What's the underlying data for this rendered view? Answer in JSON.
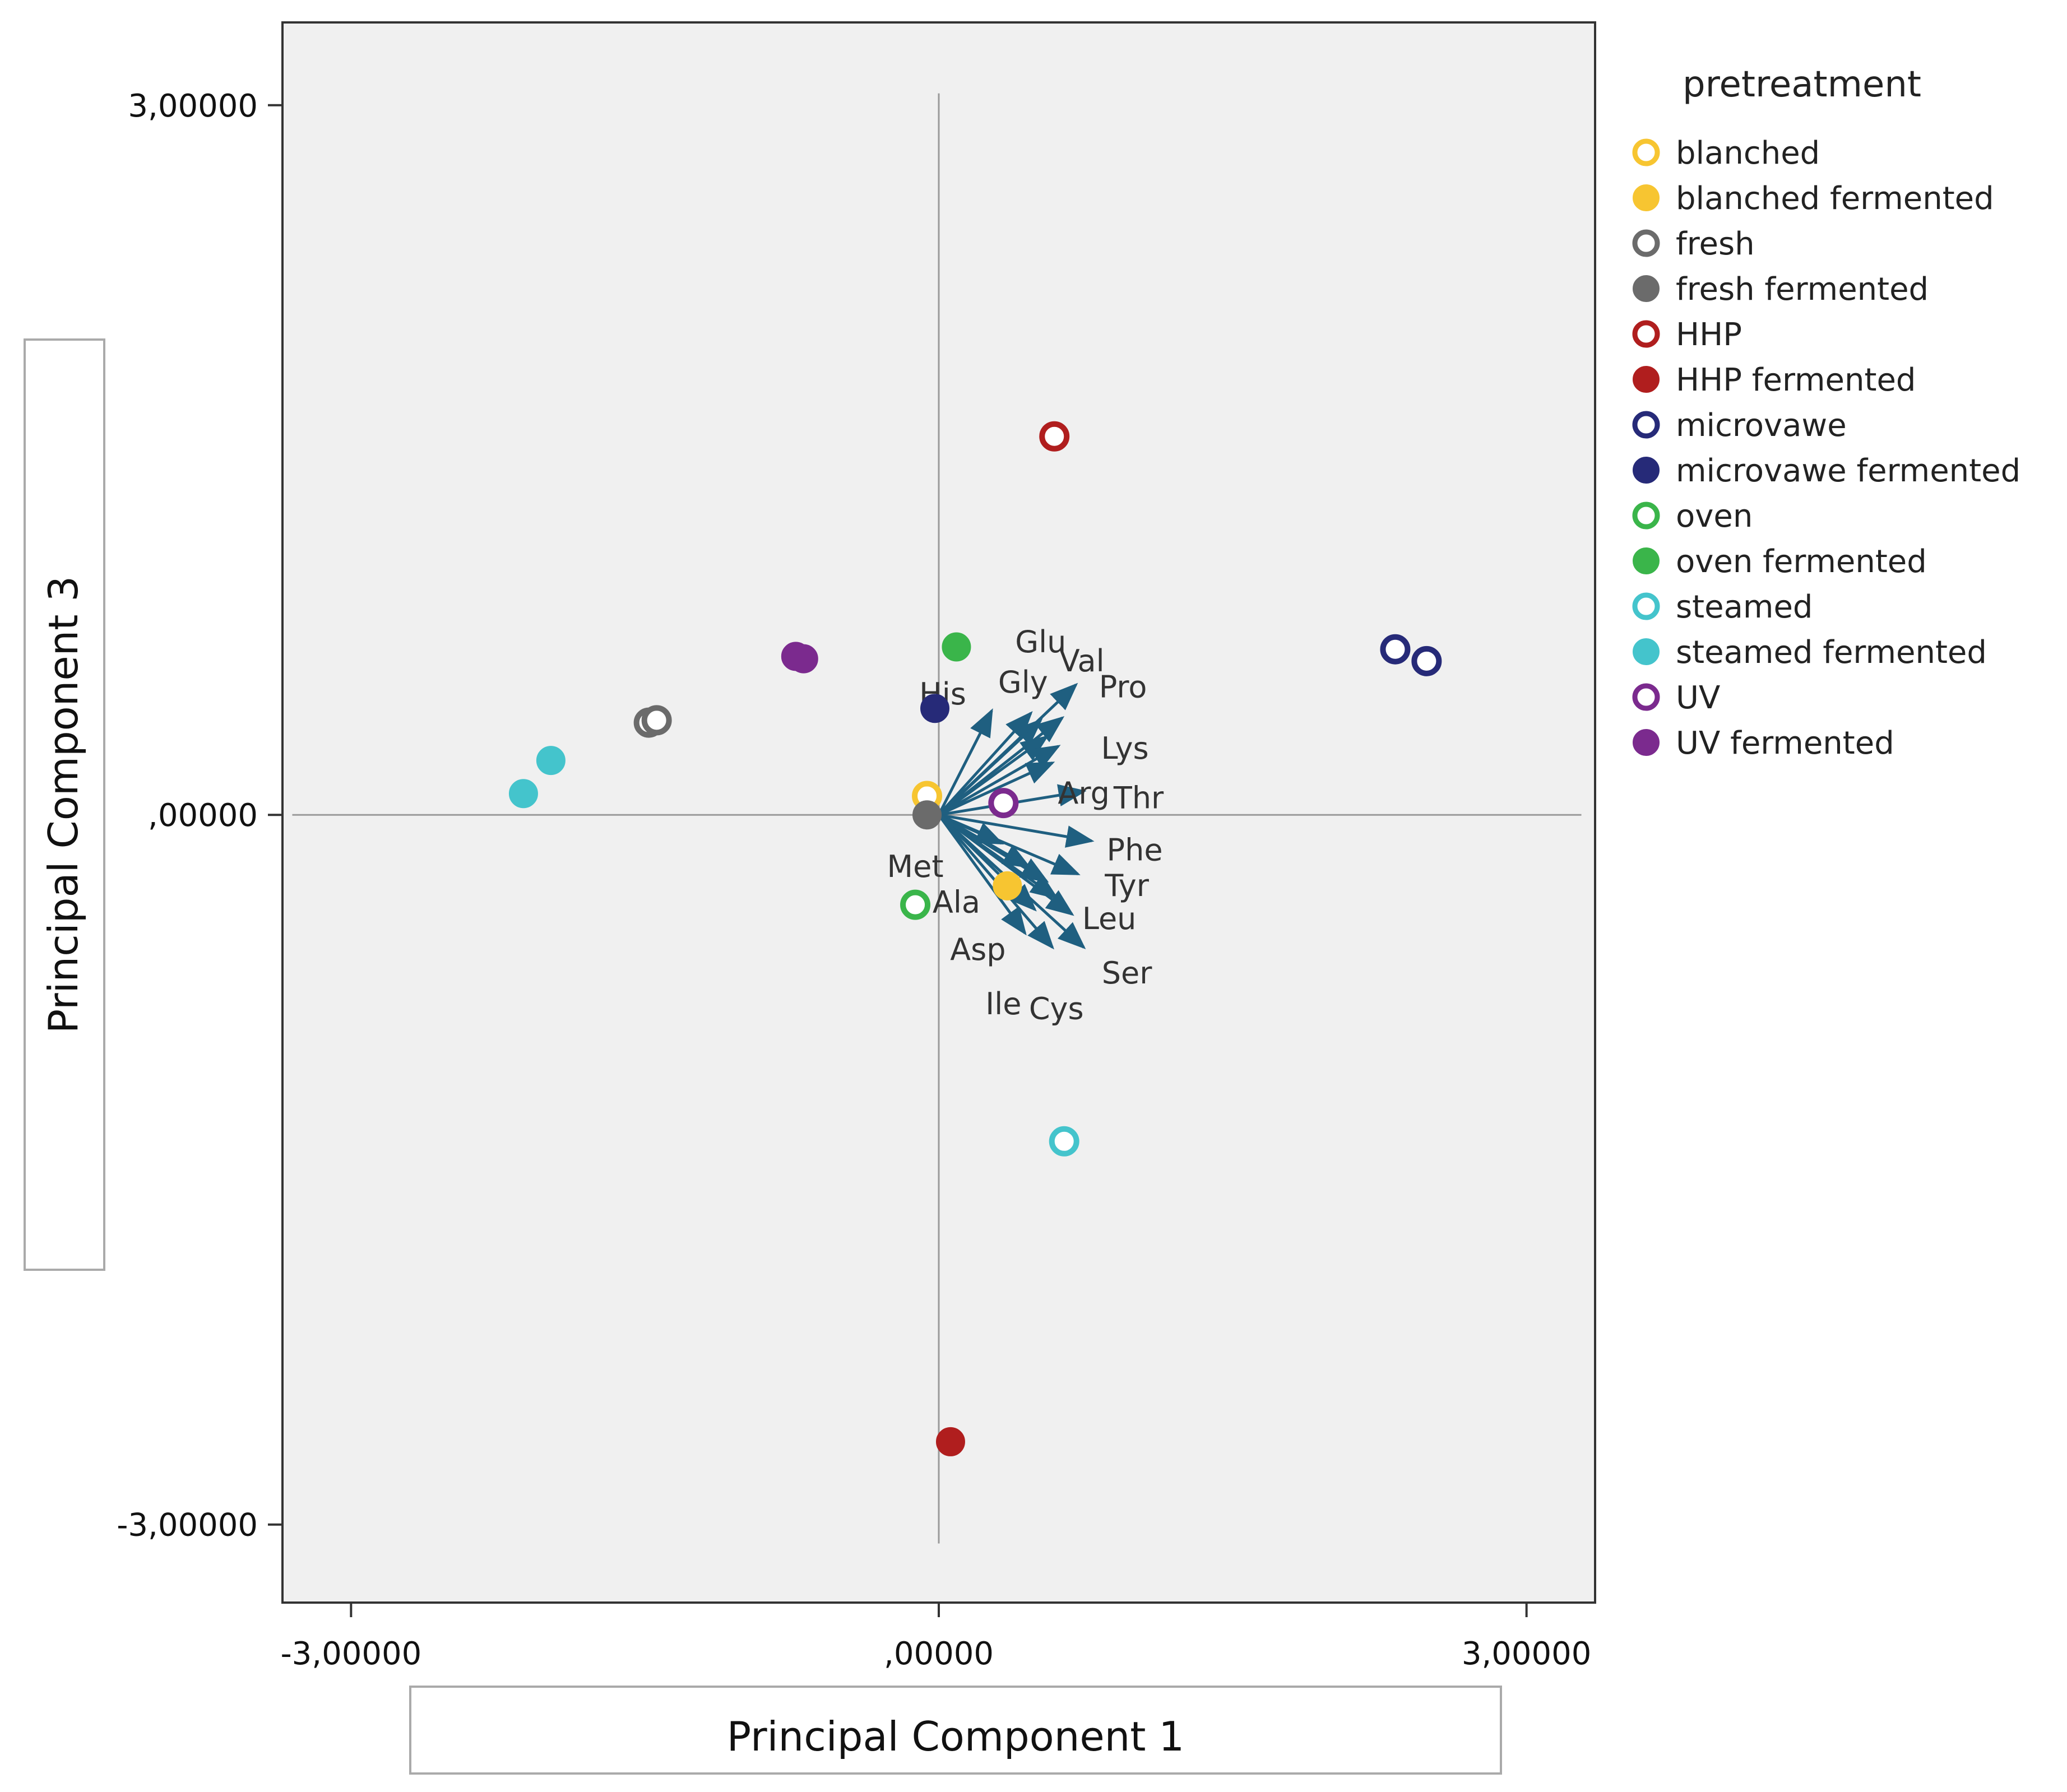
{
  "chart_data": {
    "type": "scatter",
    "subtype": "biplot",
    "xlabel": "Principal Component 1",
    "ylabel": "Principal Component 3",
    "xlim": [
      -3.35,
      3.35
    ],
    "ylim": [
      -3.33,
      3.35
    ],
    "x_ticks": [
      {
        "value": -3,
        "label": "-3,00000"
      },
      {
        "value": 0,
        "label": ",00000"
      },
      {
        "value": 3,
        "label": "3,00000"
      }
    ],
    "y_ticks": [
      {
        "value": 3,
        "label": "3,00000"
      },
      {
        "value": 0,
        "label": ",00000"
      },
      {
        "value": -3,
        "label": "-3,00000"
      }
    ],
    "reference_lines": {
      "x": 0,
      "y": 0
    },
    "legend": {
      "title": "pretreatment",
      "position": "right",
      "entries": [
        {
          "label": "blanched",
          "color": "#f7c531",
          "filled": false
        },
        {
          "label": "blanched fermented",
          "color": "#f7c531",
          "filled": true
        },
        {
          "label": "fresh",
          "color": "#6b6b6b",
          "filled": false
        },
        {
          "label": "fresh fermented",
          "color": "#6b6b6b",
          "filled": true
        },
        {
          "label": "HHP",
          "color": "#b01e1e",
          "filled": false
        },
        {
          "label": "HHP fermented",
          "color": "#b01e1e",
          "filled": true
        },
        {
          "label": "microvawe",
          "color": "#262a78",
          "filled": false
        },
        {
          "label": "microvawe fermented",
          "color": "#262a78",
          "filled": true
        },
        {
          "label": "oven",
          "color": "#3ab54a",
          "filled": false
        },
        {
          "label": "oven fermented",
          "color": "#3ab54a",
          "filled": true
        },
        {
          "label": "steamed",
          "color": "#44c4cc",
          "filled": false
        },
        {
          "label": "steamed fermented",
          "color": "#44c4cc",
          "filled": true
        },
        {
          "label": "UV",
          "color": "#7b2a8e",
          "filled": false
        },
        {
          "label": "UV fermented",
          "color": "#7b2a8e",
          "filled": true
        }
      ]
    },
    "points": [
      {
        "group": "blanched",
        "x": -0.06,
        "y": 0.08
      },
      {
        "group": "blanched fermented",
        "x": 0.35,
        "y": -0.3
      },
      {
        "group": "fresh",
        "x": -1.48,
        "y": 0.39
      },
      {
        "group": "fresh",
        "x": -1.44,
        "y": 0.4
      },
      {
        "group": "fresh fermented",
        "x": -0.06,
        "y": 0.0
      },
      {
        "group": "HHP",
        "x": 0.59,
        "y": 1.6
      },
      {
        "group": "HHP fermented",
        "x": 0.06,
        "y": -2.65
      },
      {
        "group": "microvawe",
        "x": 2.33,
        "y": 0.7
      },
      {
        "group": "microvawe",
        "x": 2.49,
        "y": 0.65
      },
      {
        "group": "microvawe fermented",
        "x": -0.02,
        "y": 0.45
      },
      {
        "group": "oven",
        "x": -0.12,
        "y": -0.38
      },
      {
        "group": "oven fermented",
        "x": 0.09,
        "y": 0.71
      },
      {
        "group": "steamed",
        "x": 0.64,
        "y": -1.38
      },
      {
        "group": "steamed fermented",
        "x": -1.98,
        "y": 0.23
      },
      {
        "group": "steamed fermented",
        "x": -2.12,
        "y": 0.09
      },
      {
        "group": "UV",
        "x": 0.33,
        "y": 0.05
      },
      {
        "group": "UV fermented",
        "x": -0.73,
        "y": 0.67
      },
      {
        "group": "UV fermented",
        "x": -0.69,
        "y": 0.66
      }
    ],
    "loadings_color": "#1f5f80",
    "loadings": [
      {
        "label": "His",
        "x": 0.27,
        "y": 0.44,
        "label_dx": -0.25,
        "label_dy": 0.07
      },
      {
        "label": "Gly",
        "x": 0.47,
        "y": 0.43,
        "label_dx": -0.04,
        "label_dy": 0.13
      },
      {
        "label": "Glu",
        "x": 0.52,
        "y": 0.4,
        "label_dx": 0.0,
        "label_dy": 0.33
      },
      {
        "label": "Val",
        "x": 0.7,
        "y": 0.55,
        "label_dx": 0.03,
        "label_dy": 0.1
      },
      {
        "label": "Pro",
        "x": 0.63,
        "y": 0.41,
        "label_dx": 0.31,
        "label_dy": 0.13
      },
      {
        "label": "Lys",
        "x": 0.55,
        "y": 0.33,
        "label_dx": 0.4,
        "label_dy": -0.05
      },
      {
        "label": "Arg",
        "x": 0.61,
        "y": 0.29,
        "label_dx": 0.13,
        "label_dy": -0.2
      },
      {
        "label": "Thr",
        "x": 0.74,
        "y": 0.1,
        "label_dx": 0.28,
        "label_dy": -0.03
      },
      {
        "label": "Phe",
        "x": 0.78,
        "y": -0.11,
        "label_dx": 0.22,
        "label_dy": -0.04
      },
      {
        "label": "Tyr",
        "x": 0.71,
        "y": -0.25,
        "label_dx": 0.25,
        "label_dy": -0.05
      },
      {
        "label": "Leu",
        "x": 0.68,
        "y": -0.42,
        "label_dx": 0.19,
        "label_dy": -0.02
      },
      {
        "label": "Ser",
        "x": 0.74,
        "y": -0.56,
        "label_dx": 0.22,
        "label_dy": -0.11
      },
      {
        "label": "Cys",
        "x": 0.58,
        "y": -0.56,
        "label_dx": 0.02,
        "label_dy": -0.26
      },
      {
        "label": "Ile",
        "x": 0.44,
        "y": -0.5,
        "label_dx": -0.11,
        "label_dy": -0.3
      },
      {
        "label": "Asp",
        "x": 0.49,
        "y": -0.4,
        "label_dx": -0.29,
        "label_dy": -0.17
      },
      {
        "label": "Ala",
        "x": 0.46,
        "y": -0.22,
        "label_dx": -0.37,
        "label_dy": -0.15
      },
      {
        "label": "Met",
        "x": 0.32,
        "y": -0.12,
        "label_dx": -0.44,
        "label_dy": -0.1
      },
      {
        "label": "",
        "x": 0.55,
        "y": -0.28,
        "label_dx": 0,
        "label_dy": 0
      },
      {
        "label": "",
        "x": 0.6,
        "y": -0.35,
        "label_dx": 0,
        "label_dy": 0
      },
      {
        "label": "",
        "x": 0.58,
        "y": 0.22,
        "label_dx": 0,
        "label_dy": 0
      }
    ]
  }
}
